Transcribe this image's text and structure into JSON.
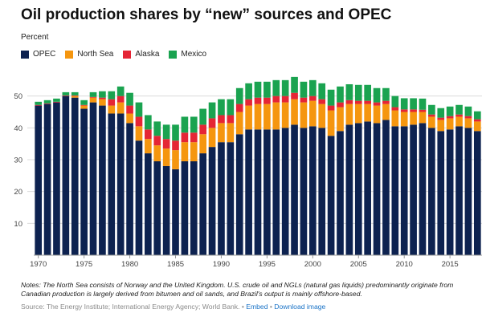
{
  "header": {
    "title": "Oil production shares by “new” sources and OPEC",
    "unit_label": "Percent"
  },
  "notes": {
    "line1": "Notes: The North Sea consists of Norway and the United Kingdom. U.S. crude oil and NGLs (natural gas liquids) predominantly originate from",
    "line2": "Canadian production is largely derived from bitumen and oil sands, and Brazil's output is mainly offshore-based."
  },
  "footer": {
    "source": "Source: The Energy Institute; International Energy Agency; World Bank.",
    "embed_label": "Embed",
    "download_label": "Download image",
    "separator": "•"
  },
  "colors": {
    "opec": "#0d2250",
    "north_sea": "#f5960f",
    "alaska": "#e52535",
    "mexico": "#1aa350",
    "grid": "#dcdcdc",
    "axis": "#999999"
  },
  "chart_data": {
    "type": "bar",
    "stacked": true,
    "ylim": [
      0,
      60
    ],
    "yticks": [
      10,
      20,
      30,
      40,
      50
    ],
    "grid": true,
    "legend_position": "top-left",
    "x": [
      1970,
      1971,
      1972,
      1973,
      1974,
      1975,
      1976,
      1977,
      1978,
      1979,
      1980,
      1981,
      1982,
      1983,
      1984,
      1985,
      1986,
      1987,
      1988,
      1989,
      1990,
      1991,
      1992,
      1993,
      1994,
      1995,
      1996,
      1997,
      1998,
      1999,
      2000,
      2001,
      2002,
      2003,
      2004,
      2005,
      2006,
      2007,
      2008,
      2009,
      2010,
      2011,
      2012,
      2013,
      2014,
      2015,
      2016,
      2017,
      2018
    ],
    "xticks": [
      1970,
      1975,
      1980,
      1985,
      1990,
      1995,
      2000,
      2005,
      2010,
      2015
    ],
    "series": [
      {
        "name": "OPEC",
        "color": "#0d2250",
        "values": [
          47,
          47.5,
          48,
          50,
          49.5,
          46,
          48,
          47,
          44.5,
          44.5,
          41.5,
          36,
          32,
          29.5,
          28,
          27,
          29.5,
          29.5,
          32,
          34,
          35.5,
          35.5,
          38,
          39.5,
          39.5,
          39.5,
          39.5,
          40,
          41,
          40,
          40.5,
          40,
          37.5,
          39,
          41,
          41.5,
          42,
          41.5,
          42.5,
          40.5,
          40.5,
          41,
          41.5,
          40,
          39,
          39.5,
          40.5,
          40,
          39
        ]
      },
      {
        "name": "North Sea",
        "color": "#f5960f",
        "values": [
          0,
          0,
          0,
          0,
          0.5,
          1,
          1.5,
          2,
          2.5,
          3.5,
          3,
          4.5,
          4.5,
          5,
          5.5,
          6,
          6,
          6,
          6,
          6,
          6,
          6,
          7,
          7.5,
          8,
          8,
          8.5,
          8,
          8,
          8,
          8,
          7.5,
          8,
          7.5,
          6.5,
          6,
          5.5,
          5.5,
          5,
          5,
          4.5,
          4,
          3.5,
          3.5,
          3.5,
          3.5,
          3,
          3,
          3
        ]
      },
      {
        "name": "Alaska",
        "color": "#e52535",
        "values": [
          0.2,
          0.2,
          0.2,
          0.2,
          0.2,
          0.2,
          0.2,
          0.5,
          2,
          2,
          2.5,
          3,
          3,
          3,
          3,
          3,
          3,
          3,
          3,
          3,
          2.5,
          2.5,
          2.5,
          2,
          2,
          2,
          2,
          2,
          2,
          1.5,
          1.5,
          1.5,
          1.5,
          1.5,
          1.2,
          1,
          1,
          1,
          1,
          1,
          0.8,
          0.8,
          0.7,
          0.7,
          0.7,
          0.7,
          0.7,
          0.7,
          0.7
        ]
      },
      {
        "name": "Mexico",
        "color": "#1aa350",
        "values": [
          1,
          1,
          1,
          1,
          1,
          1.5,
          1.5,
          2,
          2.5,
          3,
          4,
          4.5,
          4.5,
          4.5,
          4.5,
          5,
          5,
          5,
          5,
          5,
          5,
          5,
          5,
          5,
          5,
          5,
          5,
          5,
          5,
          5,
          5,
          5,
          5,
          5,
          5,
          5,
          5,
          4.5,
          4,
          3.5,
          3.5,
          3.5,
          3.5,
          3,
          3,
          3,
          3,
          3,
          2.5
        ]
      }
    ]
  }
}
